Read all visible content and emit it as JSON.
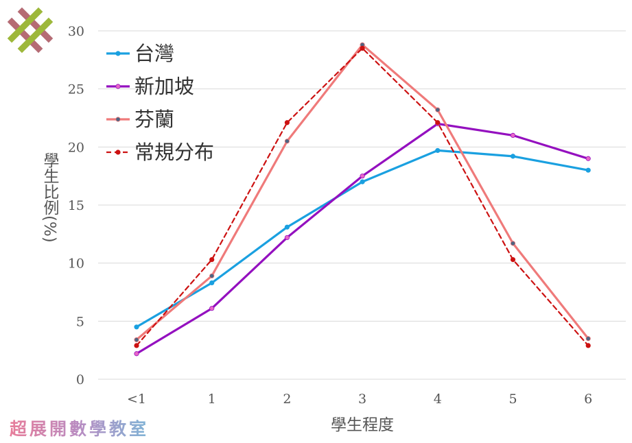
{
  "watermark_text": "超展開數學教室",
  "chart_data": {
    "type": "line",
    "categories": [
      "<1",
      "1",
      "2",
      "3",
      "4",
      "5",
      "6"
    ],
    "xlabel": "學生程度",
    "ylabel": "學生比例(%)",
    "ylim": [
      0,
      30
    ],
    "yticks": [
      "0",
      "5",
      "10",
      "15",
      "20",
      "25",
      "30"
    ],
    "grid": "horizontal",
    "legend_position": "top-left",
    "series": [
      {
        "name": "台灣",
        "color": "#1AA0E0",
        "marker": "#1AA0E0",
        "dashed": false,
        "values": [
          4.5,
          8.3,
          13.1,
          17.0,
          19.7,
          19.2,
          18.0
        ]
      },
      {
        "name": "新加坡",
        "color": "#9410BF",
        "marker": "#E866C8",
        "dashed": false,
        "values": [
          2.2,
          6.1,
          12.2,
          17.5,
          22.0,
          21.0,
          19.0
        ]
      },
      {
        "name": "芬蘭",
        "color": "#EF7A7A",
        "marker": "#4E6482",
        "dashed": false,
        "values": [
          3.4,
          8.9,
          20.5,
          28.8,
          23.2,
          11.7,
          3.5
        ]
      },
      {
        "name": "常規分布",
        "color": "#CC1111",
        "marker": "#CC1111",
        "dashed": true,
        "values": [
          2.9,
          10.3,
          22.1,
          28.5,
          22.1,
          10.3,
          2.9
        ]
      }
    ]
  }
}
